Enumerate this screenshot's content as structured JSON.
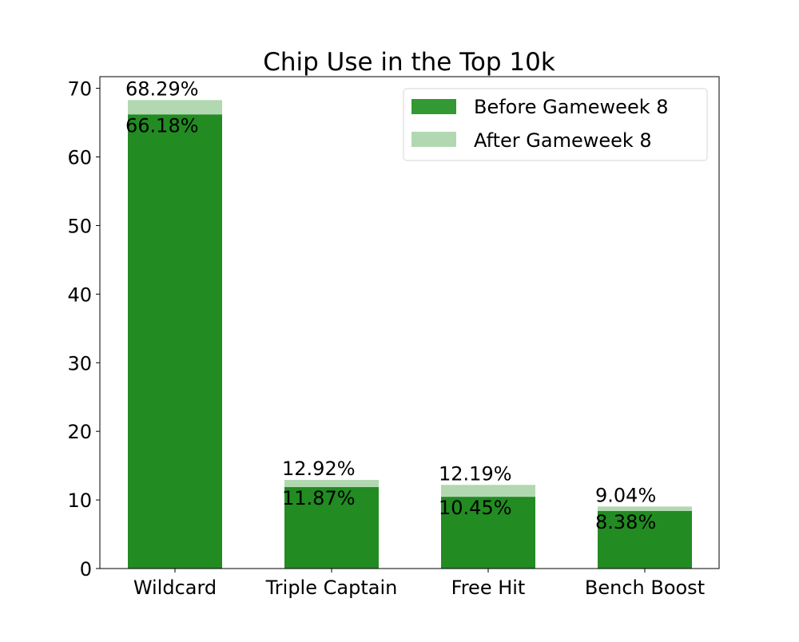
{
  "chart_data": {
    "type": "bar",
    "stacked_overlay": true,
    "title": "Chip Use in the Top 10k",
    "xlabel": "",
    "ylabel": "",
    "categories": [
      "Wildcard",
      "Triple Captain",
      "Free Hit",
      "Bench Boost"
    ],
    "series": [
      {
        "name": "Before Gameweek 8",
        "values": [
          66.18,
          11.87,
          10.45,
          8.38
        ],
        "labels": [
          "66.18%",
          "11.87%",
          "10.45%",
          "8.38%"
        ],
        "color": "#228b22",
        "legend_color": "#339933"
      },
      {
        "name": "After Gameweek 8",
        "values": [
          68.29,
          12.92,
          12.19,
          9.04
        ],
        "labels": [
          "68.29%",
          "12.92%",
          "12.19%",
          "9.04%"
        ],
        "color": "#b2d8b2",
        "legend_color": "#b2d8b2"
      }
    ],
    "ylim": [
      0,
      71.7
    ],
    "yticks": [
      0,
      10,
      20,
      30,
      40,
      50,
      60,
      70
    ],
    "grid": false,
    "legend_position": "top-right"
  }
}
